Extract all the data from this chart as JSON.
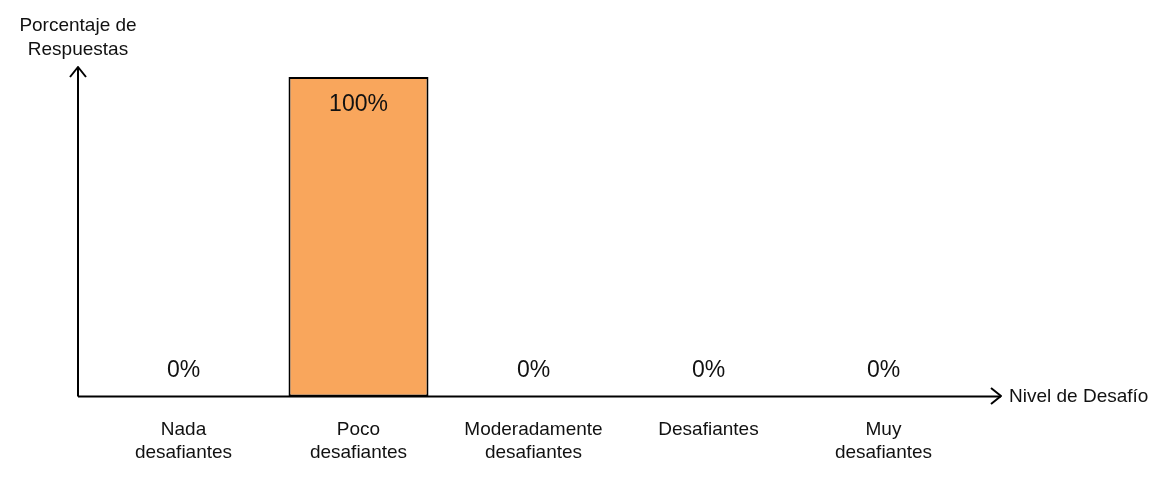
{
  "chart_data": {
    "type": "bar",
    "xlabel": "Nivel de Desafío",
    "ylabel": "Porcentaje de Respuestas",
    "categories": [
      "Nada desafiantes",
      "Poco desafiantes",
      "Moderadamente desafiantes",
      "Desafiantes",
      "Muy desafiantes"
    ],
    "values": [
      0,
      100,
      0,
      0,
      0
    ],
    "value_labels": [
      "0%",
      "100%",
      "0%",
      "0%",
      "0%"
    ],
    "color": "#f9a65c",
    "grid": false,
    "legend": false
  }
}
